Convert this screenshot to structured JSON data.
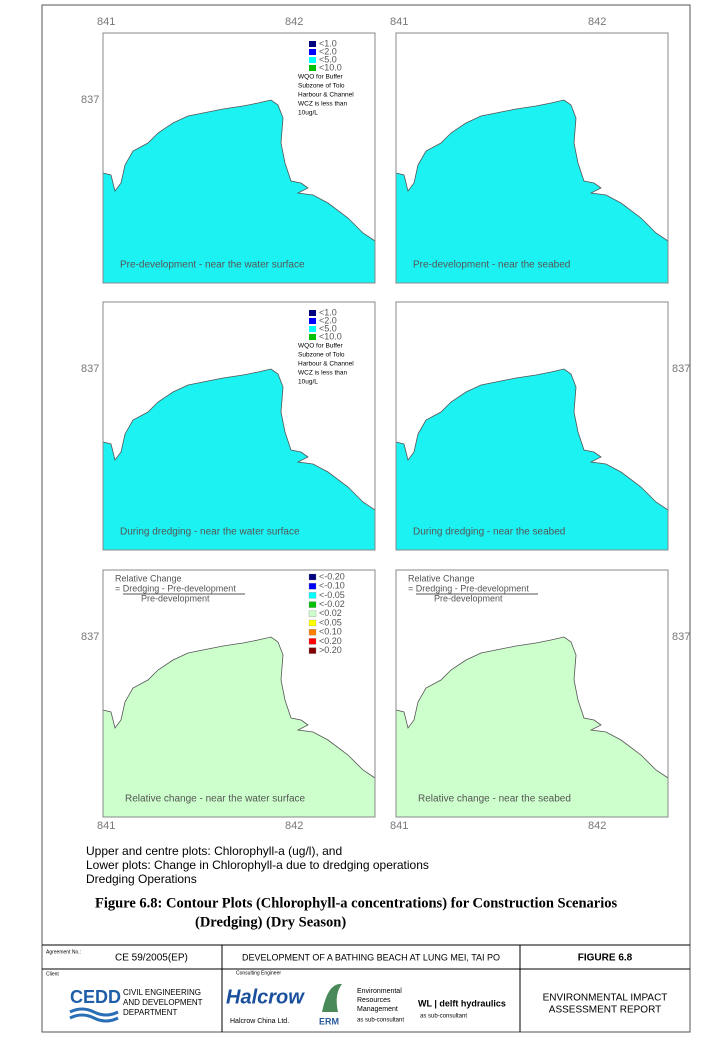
{
  "axis_labels": {
    "x": [
      "841",
      "842"
    ],
    "y": "837"
  },
  "legend_concentration": {
    "items": [
      {
        "label": "<1.0",
        "color": "#000080"
      },
      {
        "label": "<2.0",
        "color": "#0000ff"
      },
      {
        "label": "<5.0",
        "color": "#00ffff"
      },
      {
        "label": "<10.0",
        "color": "#00c000"
      }
    ],
    "note": [
      "WQO for Buffer",
      "Subzone of Tolo",
      "Harbour & Channel",
      "WCZ is less than",
      "10ug/L"
    ]
  },
  "legend_change": {
    "items": [
      {
        "label": "<-0.20",
        "color": "#000080"
      },
      {
        "label": "<-0.10",
        "color": "#0000ff"
      },
      {
        "label": "<-0.05",
        "color": "#00ffff"
      },
      {
        "label": "<-0.02",
        "color": "#00c000"
      },
      {
        "label": "<0.02",
        "color": "#ccffcc"
      },
      {
        "label": "<0.05",
        "color": "#ffff00"
      },
      {
        "label": "<0.10",
        "color": "#ff8000"
      },
      {
        "label": "<0.20",
        "color": "#ff0000"
      },
      {
        "label": ">0.20",
        "color": "#800000"
      }
    ],
    "heading": "Relative Change",
    "numerator": "= Dredging - Pre-development",
    "denominator": "Pre-development"
  },
  "panels": [
    {
      "caption": "Pre-development - near the water surface"
    },
    {
      "caption": "Pre-development - near the seabed"
    },
    {
      "caption": "During dredging - near the water surface"
    },
    {
      "caption": "During dredging - near the seabed"
    },
    {
      "caption": "Relative change - near the water surface"
    },
    {
      "caption": "Relative change - near the seabed"
    }
  ],
  "notes": [
    "Upper and centre plots: Chlorophyll-a (ug/l), and",
    "Lower plots: Change in Chlorophyll-a due to dredging operations",
    "Dredging Operations"
  ],
  "figure_title": [
    "Figure 6.8:  Contour Plots (Chlorophyll-a concentrations) for Construction Scenarios",
    "(Dredging) (Dry Season)"
  ],
  "footer": {
    "agreement_label": "Agreement No.:",
    "agreement": "CE 59/2005(EP)",
    "project": "DEVELOPMENT OF A BATHING BEACH AT LUNG MEI, TAI PO",
    "figure": "FIGURE 6.8",
    "client_label": "Client",
    "client_logo": "CEDD",
    "client": [
      "CIVIL ENGINEERING",
      "AND DEVELOPMENT",
      "DEPARTMENT"
    ],
    "consultant_label": "Consulting Engineer",
    "consultant_logo": "Halcrow",
    "consultant": "Halcrow China Ltd.",
    "erm_logo": "ERM",
    "erm": [
      "Environmental",
      "Resources",
      "Management"
    ],
    "erm_role": "as sub-consultant",
    "wl": "WL | delft hydraulics",
    "wl_role": "as sub-consultant",
    "report": [
      "ENVIRONMENTAL IMPACT",
      "ASSESSMENT REPORT"
    ]
  }
}
